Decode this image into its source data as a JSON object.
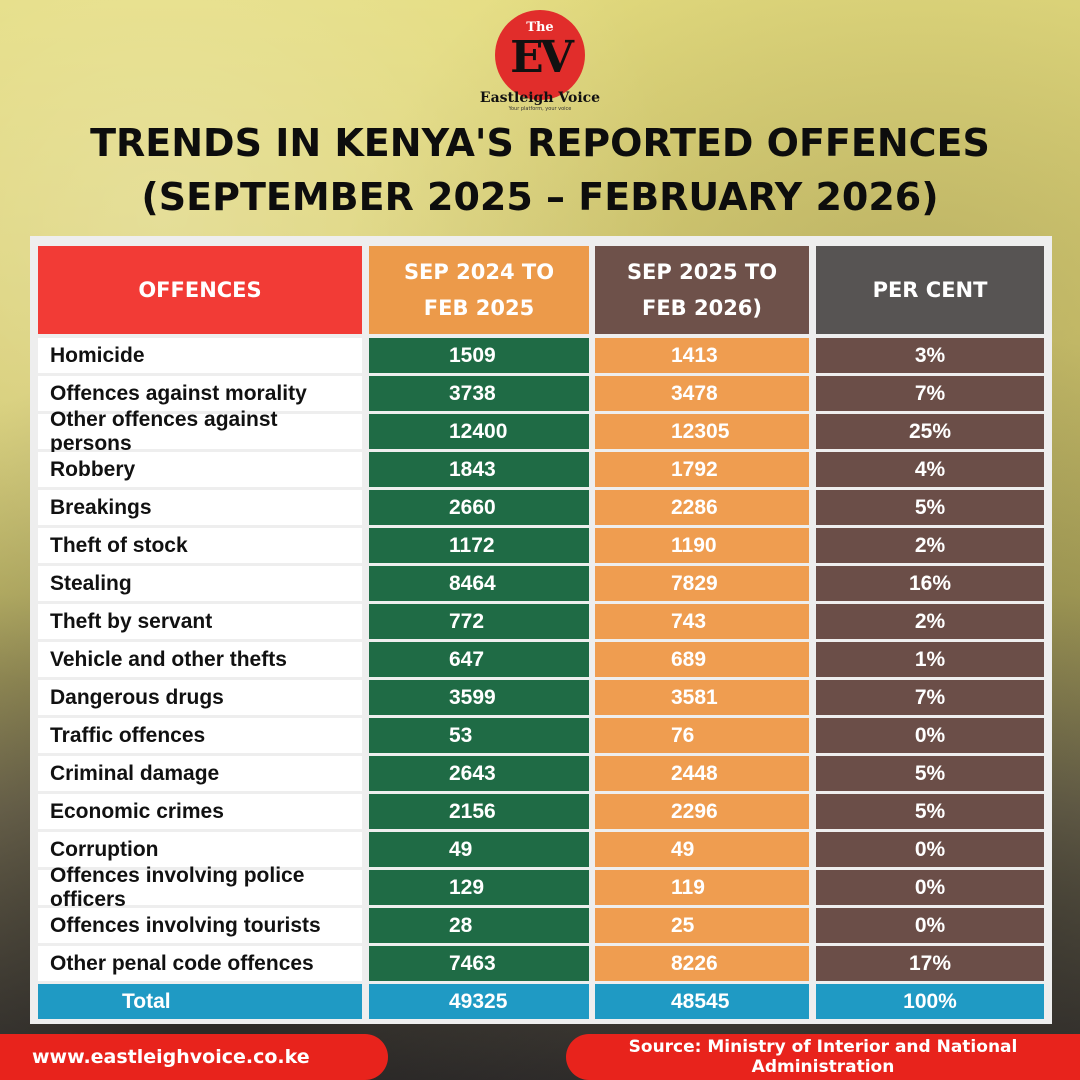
{
  "brand": {
    "logo_the": "The",
    "logo_ev": "EV",
    "name": "Eastleigh Voice",
    "tagline": "Your platform, your voice"
  },
  "title": {
    "line1": "TRENDS IN KENYA'S REPORTED OFFENCES",
    "line2": "(SEPTEMBER 2025 – FEBRUARY 2026)"
  },
  "table": {
    "headers": {
      "offences": "OFFENCES",
      "prev": "SEP 2024 TO FEB 2025",
      "curr": "SEP 2025 TO FEB 2026)",
      "pct": "PER CENT"
    },
    "rows": [
      {
        "name": "Homicide",
        "prev": "1509",
        "curr": "1413",
        "pct": "3%"
      },
      {
        "name": "Offences against morality",
        "prev": "3738",
        "curr": "3478",
        "pct": "7%"
      },
      {
        "name": "Other offences against persons",
        "prev": "12400",
        "curr": "12305",
        "pct": "25%"
      },
      {
        "name": "Robbery",
        "prev": "1843",
        "curr": "1792",
        "pct": "4%"
      },
      {
        "name": "Breakings",
        "prev": "2660",
        "curr": "2286",
        "pct": "5%"
      },
      {
        "name": "Theft of stock",
        "prev": "1172",
        "curr": "1190",
        "pct": "2%"
      },
      {
        "name": "Stealing",
        "prev": "8464",
        "curr": "7829",
        "pct": "16%"
      },
      {
        "name": "Theft by servant",
        "prev": "772",
        "curr": "743",
        "pct": "2%"
      },
      {
        "name": "Vehicle and other thefts",
        "prev": "647",
        "curr": "689",
        "pct": "1%"
      },
      {
        "name": "Dangerous drugs",
        "prev": "3599",
        "curr": "3581",
        "pct": "7%"
      },
      {
        "name": "Traffic offences",
        "prev": "53",
        "curr": "76",
        "pct": "0%"
      },
      {
        "name": "Criminal damage",
        "prev": "2643",
        "curr": "2448",
        "pct": "5%"
      },
      {
        "name": "Economic crimes",
        "prev": "2156",
        "curr": "2296",
        "pct": "5%"
      },
      {
        "name": "Corruption",
        "prev": "49",
        "curr": "49",
        "pct": "0%"
      },
      {
        "name": "Offences involving police officers",
        "prev": "129",
        "curr": "119",
        "pct": "0%"
      },
      {
        "name": "Offences involving tourists",
        "prev": "28",
        "curr": "25",
        "pct": "0%"
      },
      {
        "name": "Other penal code offences",
        "prev": "7463",
        "curr": "8226",
        "pct": "17%"
      }
    ],
    "total": {
      "name": "Total",
      "prev": "49325",
      "curr": "48545",
      "pct": "100%"
    }
  },
  "footer": {
    "website": "www.eastleighvoice.co.ke",
    "source": "Source: Ministry of Interior and National Administration"
  },
  "colors": {
    "header_offences": "#f23b36",
    "header_prev": "#ec9a4a",
    "header_curr": "#6e514a",
    "header_pct": "#575453",
    "col_prev": "#1f6b45",
    "col_curr": "#ef9d50",
    "col_pct": "#6b4e48",
    "total_row": "#1f9ac4",
    "footer": "#e8231c"
  },
  "chart_data": {
    "type": "table",
    "title": "TRENDS IN KENYA'S REPORTED OFFENCES (SEPTEMBER 2025 – FEBRUARY 2026)",
    "columns": [
      "OFFENCES",
      "SEP 2024 TO FEB 2025",
      "SEP 2025 TO FEB 2026)",
      "PER CENT"
    ],
    "categories": [
      "Homicide",
      "Offences against morality",
      "Other offences against persons",
      "Robbery",
      "Breakings",
      "Theft of stock",
      "Stealing",
      "Theft by servant",
      "Vehicle and other thefts",
      "Dangerous drugs",
      "Traffic offences",
      "Criminal damage",
      "Economic crimes",
      "Corruption",
      "Offences involving police officers",
      "Offences involving tourists",
      "Other penal code offences",
      "Total"
    ],
    "series": [
      {
        "name": "SEP 2024 TO FEB 2025",
        "values": [
          1509,
          3738,
          12400,
          1843,
          2660,
          1172,
          8464,
          772,
          647,
          3599,
          53,
          2643,
          2156,
          49,
          129,
          28,
          7463,
          49325
        ]
      },
      {
        "name": "SEP 2025 TO FEB 2026)",
        "values": [
          1413,
          3478,
          12305,
          1792,
          2286,
          1190,
          7829,
          743,
          689,
          3581,
          76,
          2448,
          2296,
          49,
          119,
          25,
          8226,
          48545
        ]
      },
      {
        "name": "PER CENT",
        "values": [
          3,
          7,
          25,
          4,
          5,
          2,
          16,
          2,
          1,
          7,
          0,
          5,
          5,
          0,
          0,
          0,
          17,
          100
        ]
      }
    ]
  }
}
